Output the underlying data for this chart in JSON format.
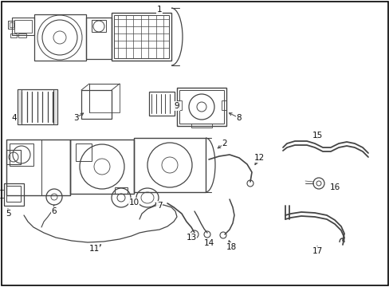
{
  "background_color": "#ffffff",
  "line_color": "#444444",
  "label_color": "#111111",
  "border_color": "#000000",
  "lw_main": 1.0,
  "lw_thin": 0.6,
  "fontsize": 7.5
}
